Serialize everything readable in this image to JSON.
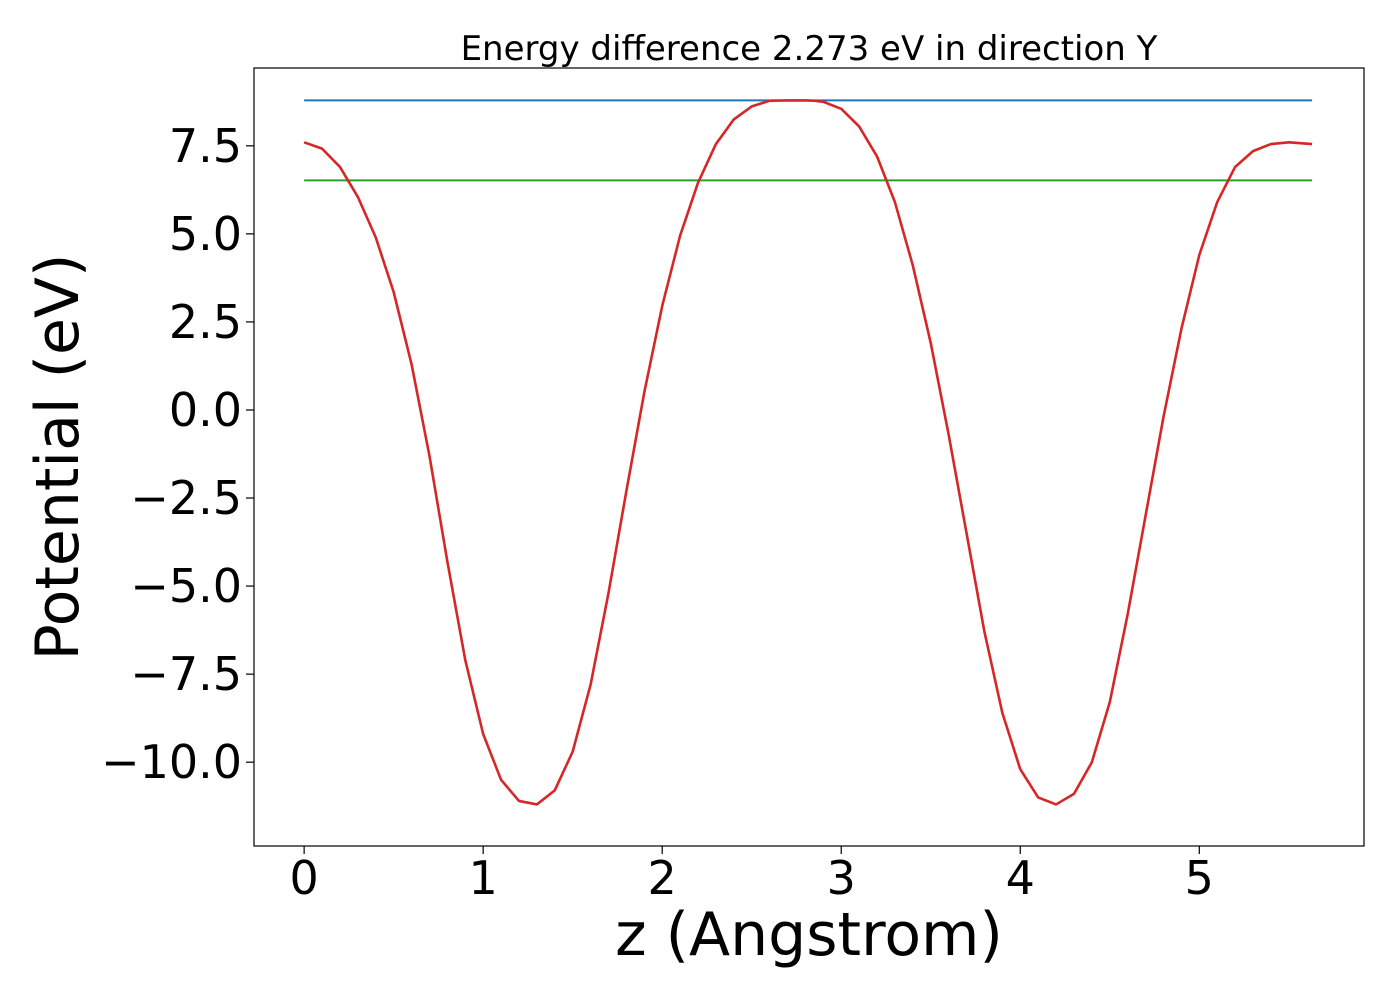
{
  "chart_data": {
    "type": "line",
    "title": "Energy difference 2.273 eV in direction Y",
    "xlabel": "z (Angstrom)",
    "ylabel": "Potential (eV)",
    "xlim": [
      -0.28,
      5.92
    ],
    "ylim": [
      -12.38,
      9.71
    ],
    "x_ticks": [
      0,
      1,
      2,
      3,
      4,
      5
    ],
    "x_tick_labels": [
      "0",
      "1",
      "2",
      "3",
      "4",
      "5"
    ],
    "y_ticks": [
      7.5,
      5.0,
      2.5,
      0.0,
      -2.5,
      -5.0,
      -7.5,
      -10.0
    ],
    "y_tick_labels": [
      "7.5",
      "5.0",
      "2.5",
      "0.0",
      "−2.5",
      "−5.0",
      "−7.5",
      "−10.0"
    ],
    "grid": false,
    "legend": "none",
    "series": [
      {
        "color": "#1f77b4",
        "x": [
          0,
          5.63
        ],
        "y": [
          8.79,
          8.79
        ]
      },
      {
        "color": "#2ca02c",
        "x": [
          0,
          5.63
        ],
        "y": [
          6.52,
          6.52
        ]
      },
      {
        "color": "#d62728",
        "x": [
          0,
          0.1,
          0.2,
          0.3,
          0.4,
          0.5,
          0.6,
          0.7,
          0.8,
          0.9,
          1.0,
          1.1,
          1.2,
          1.3,
          1.4,
          1.5,
          1.6,
          1.7,
          1.8,
          1.9,
          2.0,
          2.1,
          2.2,
          2.3,
          2.4,
          2.5,
          2.6,
          2.7,
          2.8,
          2.85,
          2.9,
          3.0,
          3.1,
          3.2,
          3.3,
          3.4,
          3.5,
          3.6,
          3.7,
          3.8,
          3.9,
          4.0,
          4.1,
          4.2,
          4.3,
          4.4,
          4.5,
          4.6,
          4.7,
          4.8,
          4.9,
          5.0,
          5.1,
          5.2,
          5.3,
          5.4,
          5.5,
          5.63
        ],
        "y": [
          7.6,
          7.42,
          6.9,
          6.05,
          4.9,
          3.35,
          1.3,
          -1.3,
          -4.3,
          -7.1,
          -9.2,
          -10.5,
          -11.1,
          -11.2,
          -10.8,
          -9.7,
          -7.8,
          -5.2,
          -2.3,
          0.5,
          2.95,
          4.95,
          6.45,
          7.55,
          8.25,
          8.62,
          8.78,
          8.79,
          8.79,
          8.78,
          8.75,
          8.55,
          8.05,
          7.2,
          5.9,
          4.1,
          1.9,
          -0.7,
          -3.5,
          -6.3,
          -8.6,
          -10.2,
          -11.0,
          -11.2,
          -10.9,
          -10.0,
          -8.3,
          -5.8,
          -3.0,
          -0.2,
          2.3,
          4.4,
          5.9,
          6.9,
          7.35,
          7.55,
          7.6,
          7.55
        ]
      }
    ]
  }
}
